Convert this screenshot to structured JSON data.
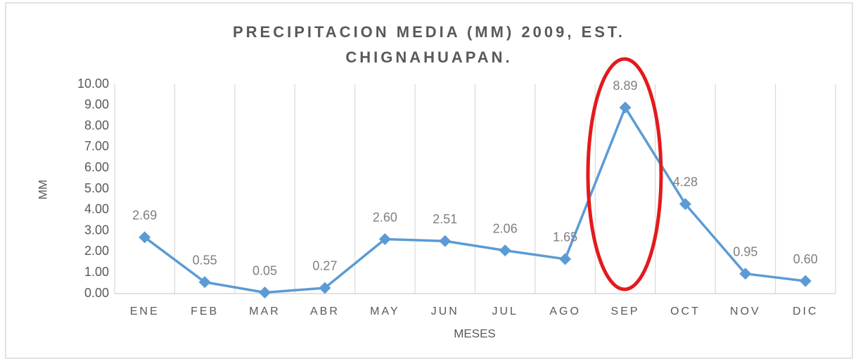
{
  "chart_data": {
    "type": "line",
    "title": [
      "PRECIPITACION MEDIA (MM) 2009, EST.",
      "CHIGNAHUAPAN."
    ],
    "x_label": "MESES",
    "y_label": "MM",
    "categories": [
      "ENE",
      "FEB",
      "MAR",
      "ABR",
      "MAY",
      "JUN",
      "JUL",
      "AGO",
      "SEP",
      "OCT",
      "NOV",
      "DIC"
    ],
    "values": [
      2.69,
      0.55,
      0.05,
      0.27,
      2.6,
      2.51,
      2.06,
      1.65,
      8.89,
      4.28,
      0.95,
      0.6
    ],
    "value_labels": [
      "2.69",
      "0.55",
      "0.05",
      "0.27",
      "2.60",
      "2.51",
      "2.06",
      "1.65",
      "8.89",
      "4.28",
      "0.95",
      "0.60"
    ],
    "color": "#5b9bd5",
    "ylim": [
      0,
      10
    ],
    "yticks": [
      {
        "value": 0,
        "label": "0.00"
      },
      {
        "value": 1,
        "label": "1.00"
      },
      {
        "value": 2,
        "label": "2.00"
      },
      {
        "value": 3,
        "label": "3.00"
      },
      {
        "value": 4,
        "label": "4.00"
      },
      {
        "value": 5,
        "label": "5.00"
      },
      {
        "value": 6,
        "label": "6.00"
      },
      {
        "value": 7,
        "label": "7.00"
      },
      {
        "value": 8,
        "label": "8.00"
      },
      {
        "value": 9,
        "label": "9.00"
      },
      {
        "value": 10,
        "label": "10.00"
      }
    ],
    "grid": true
  }
}
